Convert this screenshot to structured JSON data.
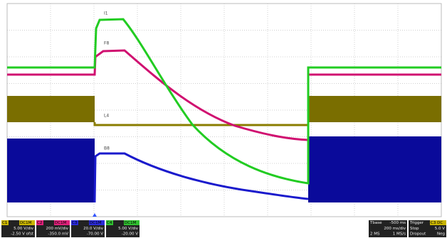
{
  "screen": {
    "trace_labels": [
      "I1",
      "F8",
      "L4",
      "B8"
    ],
    "channels": [
      {
        "tag": "C1",
        "coupling": "DC1M",
        "scale": "5.00 V/div",
        "offset": "-2.50 V ofst"
      },
      {
        "tag": "C2",
        "coupling": "DC1M",
        "scale": "200 mV/div",
        "offset": "-350.0 mV"
      },
      {
        "tag": "C3",
        "coupling": "DC1M",
        "scale": "20.0 V/div",
        "offset": "-70.00 V"
      },
      {
        "tag": "C4",
        "coupling": "DC1M",
        "scale": "5.00 V/div",
        "offset": "-20.00 V"
      }
    ],
    "timebase": {
      "title": "Tbase",
      "delay": "-500 ms",
      "scale": "200 ms/div",
      "points": "2 MS",
      "rate": "1 MS/s"
    },
    "trigger": {
      "title": "Trigger",
      "source": "C3 DC",
      "mode": "Stop",
      "level": "5.0 V",
      "type": "Dropout",
      "slope": "Neg"
    }
  }
}
